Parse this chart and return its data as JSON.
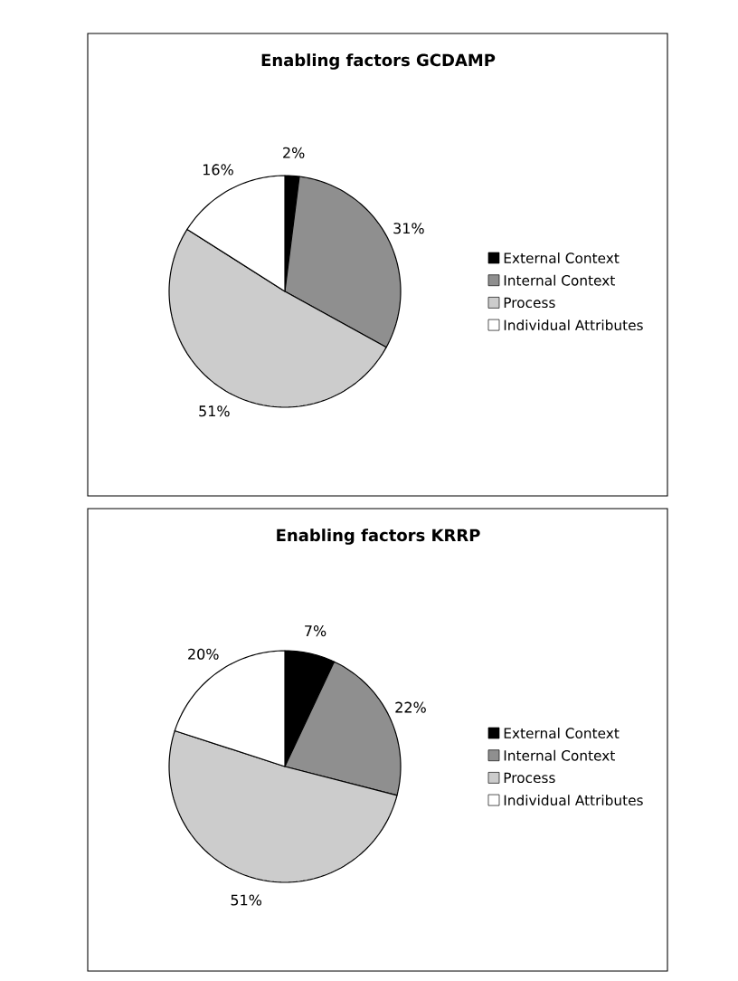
{
  "chart_data": [
    {
      "type": "pie",
      "title": "Enabling factors GCDAMP",
      "categories": [
        "External Context",
        "Internal Context",
        "Process",
        "Individual Attributes"
      ],
      "values": [
        2,
        31,
        51,
        16
      ],
      "value_labels": [
        "2%",
        "31%",
        "51%",
        "16%"
      ],
      "colors": [
        "#000000",
        "#8f8f8f",
        "#cccccc",
        "#ffffff"
      ],
      "legend": "right"
    },
    {
      "type": "pie",
      "title": "Enabling factors KRRP",
      "categories": [
        "External Context",
        "Internal Context",
        "Process",
        "Individual Attributes"
      ],
      "values": [
        7,
        22,
        51,
        20
      ],
      "value_labels": [
        "7%",
        "22%",
        "51%",
        "20%"
      ],
      "colors": [
        "#000000",
        "#8f8f8f",
        "#cccccc",
        "#ffffff"
      ],
      "legend": "right"
    }
  ]
}
